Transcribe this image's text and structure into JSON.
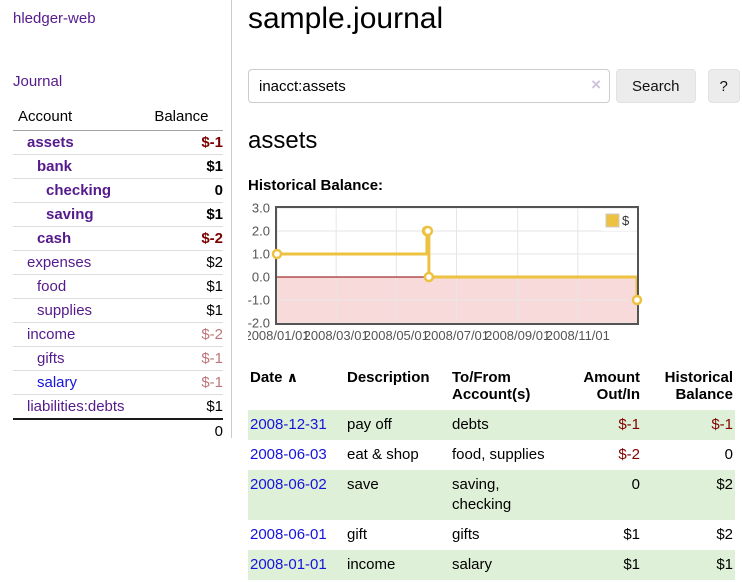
{
  "app": {
    "title": "hledger-web",
    "nav_journal": "Journal"
  },
  "colors": {
    "link_purple": "#551a8b",
    "link_blue": "#1414dd",
    "negative_dark": "#7d0000",
    "negative_light": "#bd7676",
    "register_negative": "#800000",
    "row_green": "#dff0d8",
    "chart_line": "#edc240",
    "sidebar_border": "#cccccc"
  },
  "sidebar": {
    "table": {
      "headers": [
        "Account",
        "Balance"
      ],
      "rows": [
        {
          "name": "assets",
          "balance": "$-1",
          "indent": 1,
          "bold": true,
          "link_color": "purple",
          "balance_tone": "dark-negative"
        },
        {
          "name": "bank",
          "balance": "$1",
          "indent": 2,
          "bold": true,
          "link_color": "purple",
          "balance_tone": "normal"
        },
        {
          "name": "checking",
          "balance": "0",
          "indent": 3,
          "bold": true,
          "link_color": "purple",
          "balance_tone": "normal"
        },
        {
          "name": "saving",
          "balance": "$1",
          "indent": 3,
          "bold": true,
          "link_color": "purple",
          "balance_tone": "normal"
        },
        {
          "name": "cash",
          "balance": "$-2",
          "indent": 2,
          "bold": true,
          "link_color": "purple",
          "balance_tone": "dark-negative"
        },
        {
          "name": "expenses",
          "balance": "$2",
          "indent": 1,
          "bold": false,
          "link_color": "purple",
          "balance_tone": "normal"
        },
        {
          "name": "food",
          "balance": "$1",
          "indent": 2,
          "bold": false,
          "link_color": "purple",
          "balance_tone": "normal"
        },
        {
          "name": "supplies",
          "balance": "$1",
          "indent": 2,
          "bold": false,
          "link_color": "purple",
          "balance_tone": "normal"
        },
        {
          "name": "income",
          "balance": "$-2",
          "indent": 1,
          "bold": false,
          "link_color": "purple",
          "balance_tone": "light-negative"
        },
        {
          "name": "gifts",
          "balance": "$-1",
          "indent": 2,
          "bold": false,
          "link_color": "purple",
          "balance_tone": "light-negative"
        },
        {
          "name": "salary",
          "balance": "$-1",
          "indent": 2,
          "bold": false,
          "link_color": "blue",
          "balance_tone": "light-negative"
        },
        {
          "name": "liabilities:debts",
          "balance": "$1",
          "indent": 1,
          "bold": false,
          "link_color": "purple",
          "balance_tone": "normal"
        }
      ],
      "total": "0"
    }
  },
  "header": {
    "title": "sample.journal"
  },
  "search": {
    "value": "inacct:assets",
    "clear_icon": "×",
    "button_label": "Search",
    "help_label": "?"
  },
  "account_page": {
    "title": "assets",
    "chart_label": "Historical Balance:"
  },
  "chart_data": {
    "type": "line",
    "title": "Historical Balance:",
    "x_range": [
      "2008-01-01",
      "2008-12-31"
    ],
    "ylim": [
      -2,
      3
    ],
    "yticks": [
      3.0,
      2.0,
      1.0,
      0.0,
      -1.0,
      -2.0
    ],
    "ytick_labels": [
      "3.0",
      "2.0",
      "1.0",
      "0.0",
      "-1.0",
      "-2.0"
    ],
    "xticks": [
      {
        "date": "2008-01-01",
        "label": "2008/01/01"
      },
      {
        "date": "2008-03-01",
        "label": "2008/03/01"
      },
      {
        "date": "2008-05-01",
        "label": "2008/05/01"
      },
      {
        "date": "2008-07-01",
        "label": "2008/07/01"
      },
      {
        "date": "2008-09-01",
        "label": "2008/09/01"
      },
      {
        "date": "2008-11-01",
        "label": "2008/11/01"
      }
    ],
    "series": [
      {
        "name": "$",
        "step": true,
        "color": "#edc240",
        "points": [
          {
            "date": "2008-01-01",
            "value": 1
          },
          {
            "date": "2008-06-01",
            "value": 2
          },
          {
            "date": "2008-06-02",
            "value": 2
          },
          {
            "date": "2008-06-03",
            "value": 0
          },
          {
            "date": "2008-12-31",
            "value": -1
          }
        ]
      }
    ],
    "legend": {
      "position": "top-right",
      "label": "$"
    },
    "grid": true,
    "grid_color": "#e6e6e6",
    "zero_line_color": "#8b0000",
    "negative_region_color": "#f9dada",
    "plot_border_color": "#545454",
    "tick_label_color": "#545454"
  },
  "register": {
    "headers": [
      "Date",
      "Description",
      "To/From Account(s)",
      "Amount Out/In",
      "Historical Balance"
    ],
    "sort_icon": "∧",
    "rows": [
      {
        "date": "2008-12-31",
        "description": "pay off",
        "accounts": "debts",
        "amount": "$-1",
        "balance": "$-1",
        "amount_negative": true,
        "balance_negative": true
      },
      {
        "date": "2008-06-03",
        "description": "eat & shop",
        "accounts": "food, supplies",
        "amount": "$-2",
        "balance": "0",
        "amount_negative": true,
        "balance_negative": false
      },
      {
        "date": "2008-06-02",
        "description": "save",
        "accounts": "saving, checking",
        "amount": "0",
        "balance": "$2",
        "amount_negative": false,
        "balance_negative": false
      },
      {
        "date": "2008-06-01",
        "description": "gift",
        "accounts": "gifts",
        "amount": "$1",
        "balance": "$2",
        "amount_negative": false,
        "balance_negative": false
      },
      {
        "date": "2008-01-01",
        "description": "income",
        "accounts": "salary",
        "amount": "$1",
        "balance": "$1",
        "amount_negative": false,
        "balance_negative": false
      }
    ]
  }
}
